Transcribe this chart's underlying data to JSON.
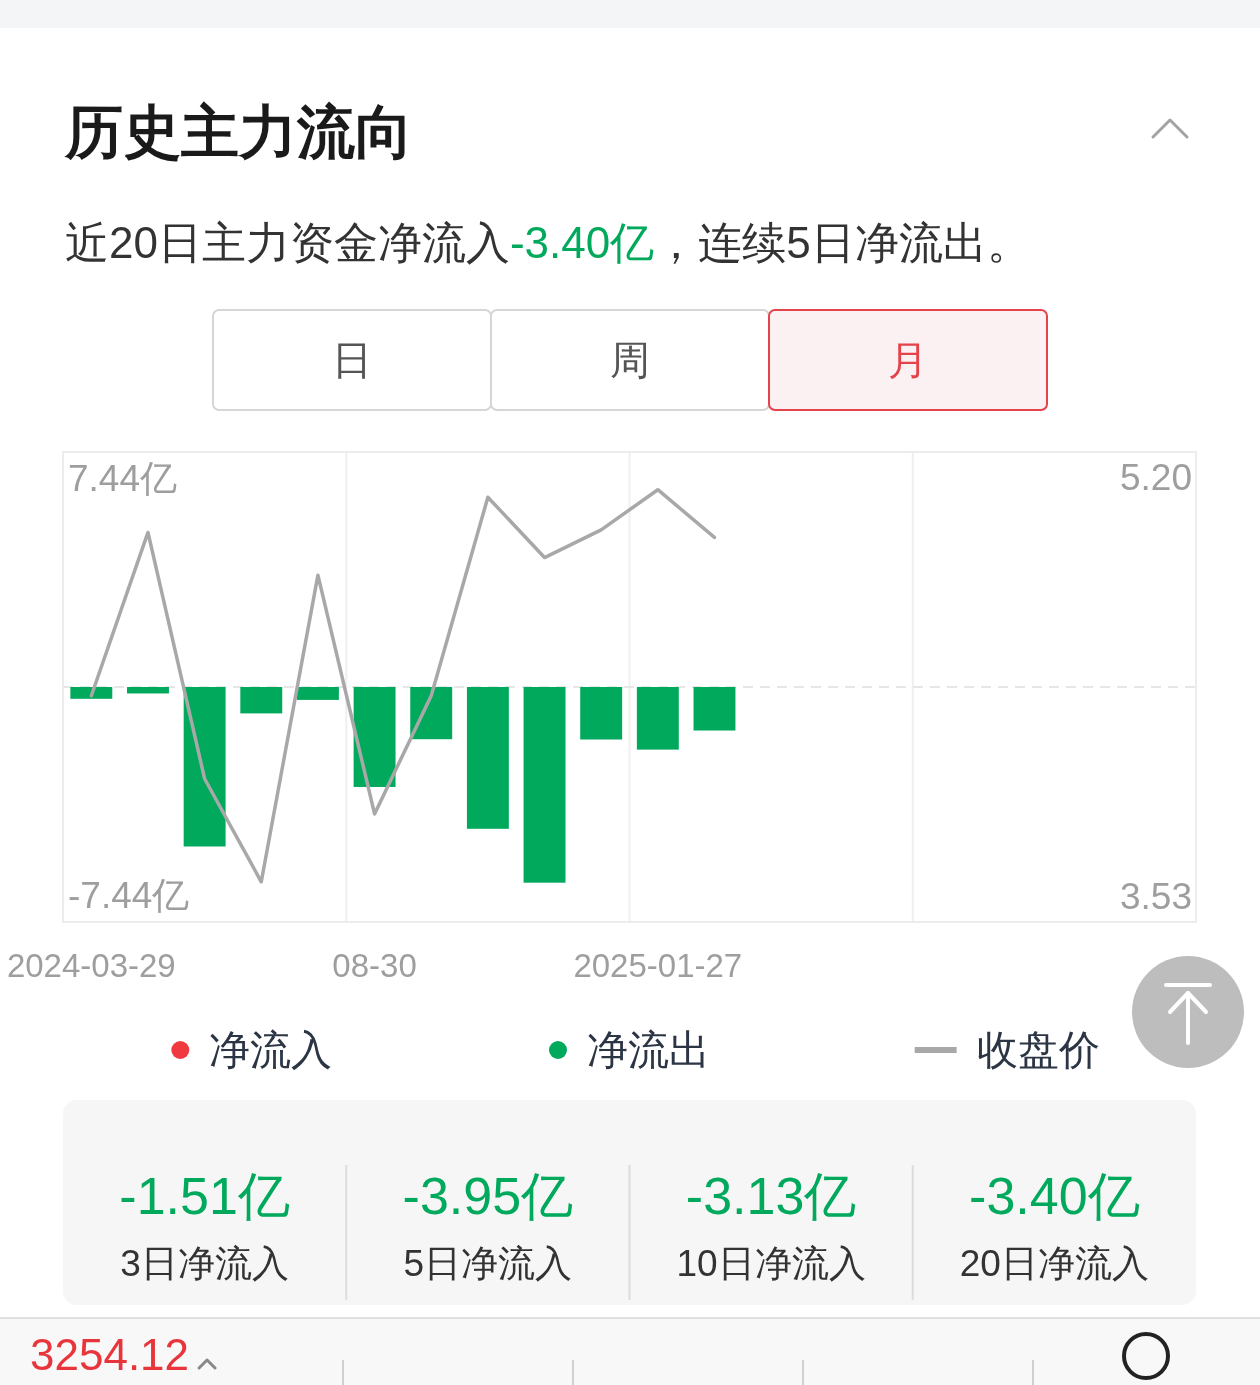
{
  "chart_data": {
    "type": "bar",
    "title": "历史主力流向",
    "subtitle": "近20日主力资金净流入-3.40亿，连续5日净流出。",
    "categories": [
      "2024-03-29",
      null,
      null,
      null,
      null,
      "08-30",
      null,
      null,
      null,
      null,
      "2025-01-27",
      null,
      null,
      null,
      null,
      null,
      null,
      null,
      null,
      null
    ],
    "series": [
      {
        "name": "净流入",
        "color": "#f0393f",
        "values": [
          null,
          null,
          null,
          null,
          null,
          null,
          null,
          null,
          null,
          null,
          null,
          null,
          null,
          null,
          null,
          null,
          null,
          null,
          null,
          null
        ]
      },
      {
        "name": "净流出",
        "color": "#00a95c",
        "values": [
          -0.42,
          -0.23,
          -5.68,
          -0.94,
          -0.46,
          -3.56,
          -1.86,
          -5.05,
          -6.97,
          -1.87,
          -2.23,
          -1.55,
          null,
          null,
          null,
          null,
          null,
          null,
          null,
          null
        ]
      },
      {
        "name": "收盘价",
        "type": "line",
        "axis": "y2",
        "color": "#a8a8a8",
        "values": [
          4.33,
          4.98,
          4.0,
          3.59,
          4.81,
          3.86,
          4.33,
          5.12,
          4.88,
          4.99,
          5.15,
          4.96,
          null,
          null,
          null,
          null,
          null,
          null,
          null,
          null
        ]
      }
    ],
    "stacked": true,
    "ylim": [
      -8.37,
      8.37
    ],
    "yticks": [
      {
        "value": -7.44,
        "label": "-7.44亿"
      },
      {
        "value": 7.44,
        "label": "7.44亿"
      }
    ],
    "y2lim": [
      3.43,
      5.3
    ],
    "y2ticks": [
      3.53,
      {
        "value": 5.2,
        "label": "5.20"
      }
    ],
    "ref_lines": [
      {
        "axis": "y",
        "value": 0,
        "color": "#e6e6e6",
        "line_style": "dashed"
      }
    ],
    "grid": "x",
    "legend": "bottom",
    "line_style": "solid",
    "annotations": [
      "日",
      "周",
      "月",
      "-1.51亿",
      "-3.95亿",
      "-3.13亿",
      "-3.40亿",
      "3日净流入",
      "5日净流入",
      "10日净流入",
      "20日净流入",
      "3254.12"
    ]
  }
}
